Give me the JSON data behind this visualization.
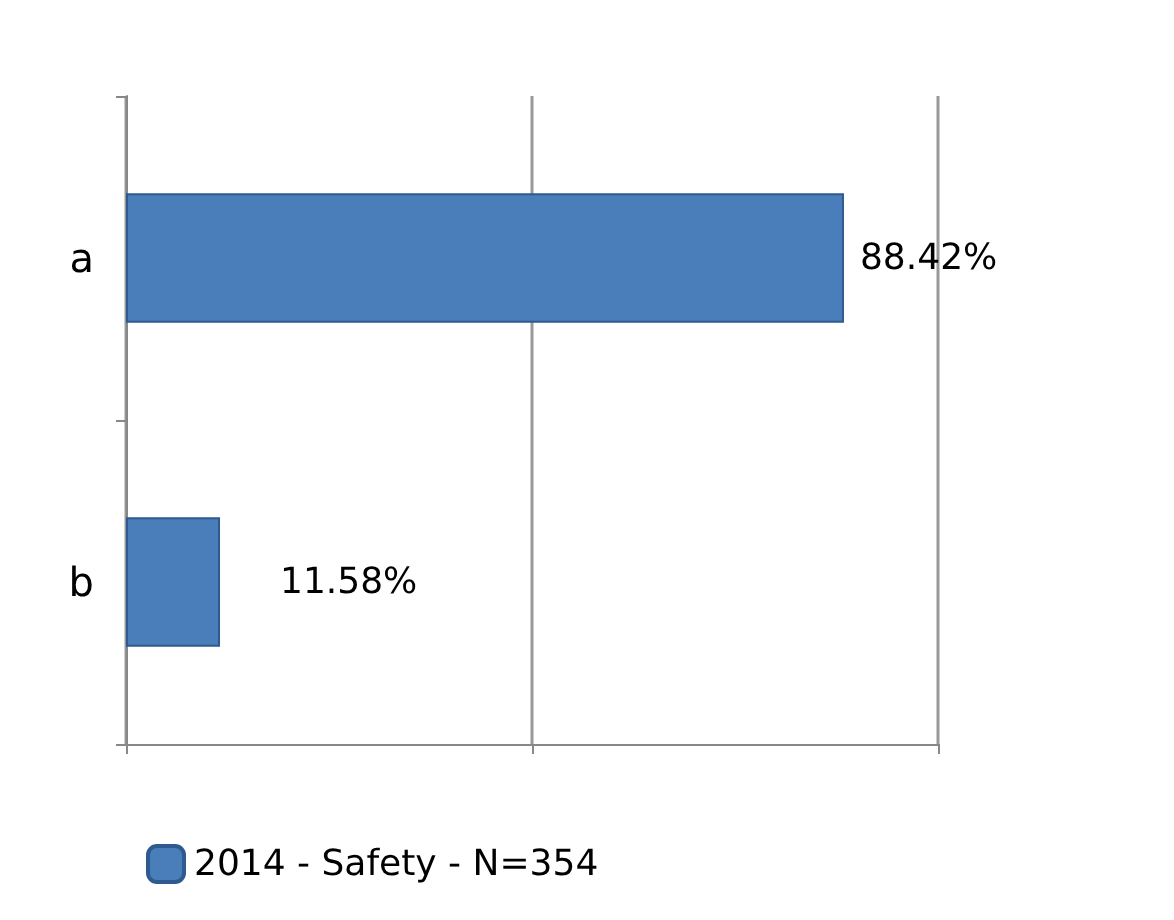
{
  "chart_data": {
    "type": "bar",
    "orientation": "horizontal",
    "categories": [
      "a",
      "b"
    ],
    "series": [
      {
        "name": "2014 - Safety - N=354",
        "color": "#4a7ebb",
        "values": [
          88.42,
          11.58
        ],
        "value_labels": [
          "88.42%",
          "11.58%"
        ]
      }
    ],
    "xlim": [
      0,
      100
    ],
    "xticks": [
      0,
      50,
      100
    ],
    "tick_labels": "y",
    "grid": "x",
    "legend": "bottom"
  }
}
